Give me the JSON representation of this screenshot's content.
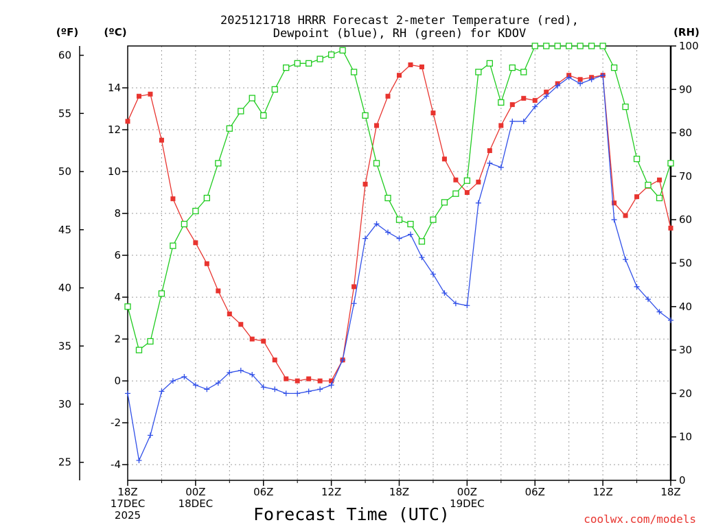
{
  "chart_data": {
    "type": "line",
    "title_lines": [
      "2025121718 HRRR Forecast 2-meter Temperature (red),",
      "Dewpoint (blue), RH (green) for KDOV"
    ],
    "xlabel": "Forecast Time (UTC)",
    "watermark": "coolwx.com/models",
    "units": {
      "fahrenheit": "(ºF)",
      "celsius": "(ºC)",
      "rh": "(RH)"
    },
    "x_range": [
      0,
      48
    ],
    "celsius_range": [
      -4.75,
      16.0
    ],
    "rh_range": [
      0,
      100
    ],
    "x_ticks": [
      {
        "hour": 0,
        "lines": [
          "18Z",
          "17DEC",
          "2025"
        ]
      },
      {
        "hour": 6,
        "lines": [
          "00Z",
          "18DEC"
        ]
      },
      {
        "hour": 12,
        "lines": [
          "06Z"
        ]
      },
      {
        "hour": 18,
        "lines": [
          "12Z"
        ]
      },
      {
        "hour": 24,
        "lines": [
          "18Z"
        ]
      },
      {
        "hour": 30,
        "lines": [
          "00Z",
          "19DEC"
        ]
      },
      {
        "hour": 36,
        "lines": [
          "06Z"
        ]
      },
      {
        "hour": 42,
        "lines": [
          "12Z"
        ]
      },
      {
        "hour": 48,
        "lines": [
          "18Z"
        ]
      }
    ],
    "celsius_ticks": [
      "-4",
      "-2",
      "0",
      "2",
      "4",
      "6",
      "8",
      "10",
      "12",
      "14"
    ],
    "fahrenheit_ticks": [
      "25",
      "30",
      "35",
      "40",
      "45",
      "50",
      "55",
      "60"
    ],
    "rh_ticks": [
      "0",
      "10",
      "20",
      "30",
      "40",
      "50",
      "60",
      "70",
      "80",
      "90",
      "100"
    ],
    "series": [
      {
        "name": "Temperature",
        "color": "#e8342f",
        "marker": "filled-square",
        "axis": "celsius",
        "values": [
          12.4,
          13.6,
          13.7,
          11.5,
          8.7,
          7.5,
          6.6,
          5.6,
          4.3,
          3.2,
          2.7,
          2.0,
          1.9,
          1.0,
          0.1,
          0.0,
          0.1,
          0.0,
          0.0,
          1.0,
          4.5,
          9.4,
          12.2,
          13.6,
          14.6,
          15.1,
          15.0,
          12.8,
          10.6,
          9.6,
          9.0,
          9.5,
          11.0,
          12.2,
          13.2,
          13.5,
          13.4,
          13.8,
          14.2,
          14.6,
          14.4,
          14.5,
          14.6,
          8.5,
          7.9,
          8.8,
          9.3,
          9.6,
          7.3
        ]
      },
      {
        "name": "Dewpoint",
        "color": "#3150e8",
        "marker": "plus",
        "axis": "celsius",
        "values": [
          -0.6,
          -3.8,
          -2.6,
          -0.5,
          0.0,
          0.2,
          -0.2,
          -0.4,
          -0.1,
          0.4,
          0.5,
          0.3,
          -0.3,
          -0.4,
          -0.6,
          -0.6,
          -0.5,
          -0.4,
          -0.2,
          1.0,
          3.7,
          6.8,
          7.5,
          7.1,
          6.8,
          7.0,
          5.9,
          5.1,
          4.2,
          3.7,
          3.6,
          8.5,
          10.4,
          10.2,
          12.4,
          12.4,
          13.1,
          13.6,
          14.1,
          14.5,
          14.2,
          14.4,
          14.6,
          7.7,
          5.8,
          4.5,
          3.9,
          3.3,
          2.9
        ]
      },
      {
        "name": "RH",
        "color": "#1ecb1e",
        "marker": "open-square",
        "axis": "rh",
        "values": [
          40,
          30,
          32,
          43,
          54,
          59,
          62,
          65,
          73,
          81,
          85,
          88,
          84,
          90,
          95,
          96,
          96,
          97,
          98,
          99,
          94,
          84,
          73,
          65,
          60,
          59,
          55,
          60,
          64,
          66,
          69,
          94,
          96,
          87,
          95,
          94,
          100,
          100,
          100,
          100,
          100,
          100,
          100,
          95,
          86,
          74,
          68,
          65,
          73
        ]
      }
    ]
  }
}
